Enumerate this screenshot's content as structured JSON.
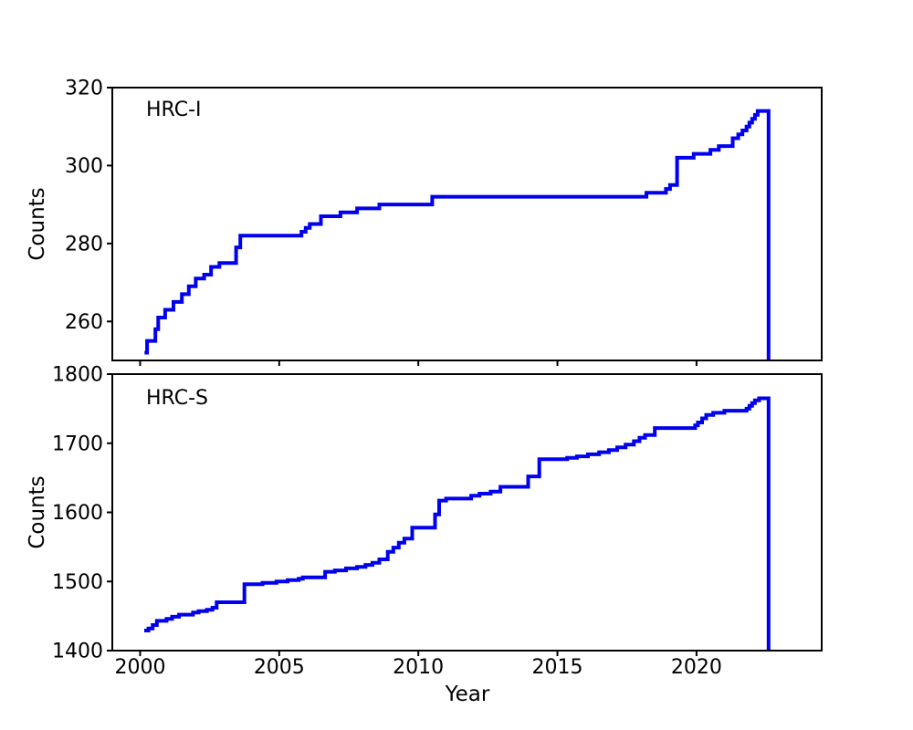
{
  "figure": {
    "background": "#ffffff",
    "axis_color": "#000000",
    "line_color": "#0000ee"
  },
  "chart_data": [
    {
      "type": "line",
      "style": "step-post",
      "label": "HRC-I",
      "ylabel": "Counts",
      "xlabel": "",
      "xlim": [
        1999.0,
        2024.5
      ],
      "ylim": [
        250,
        320
      ],
      "xticks": [
        2000,
        2005,
        2010,
        2015,
        2020
      ],
      "show_xticklabels": false,
      "yticks": [
        260,
        280,
        300,
        320
      ],
      "grid": false,
      "legend": "none",
      "points": [
        [
          2000.16,
          252
        ],
        [
          2000.25,
          255
        ],
        [
          2000.55,
          258
        ],
        [
          2000.65,
          261
        ],
        [
          2000.9,
          263
        ],
        [
          2001.2,
          265
        ],
        [
          2001.5,
          267
        ],
        [
          2001.75,
          269
        ],
        [
          2002.0,
          271
        ],
        [
          2002.3,
          272
        ],
        [
          2002.55,
          274
        ],
        [
          2002.85,
          275
        ],
        [
          2003.45,
          279
        ],
        [
          2003.6,
          282
        ],
        [
          2005.8,
          283
        ],
        [
          2005.95,
          284
        ],
        [
          2006.1,
          285
        ],
        [
          2006.5,
          287
        ],
        [
          2007.2,
          288
        ],
        [
          2007.8,
          289
        ],
        [
          2008.6,
          290
        ],
        [
          2010.5,
          292
        ],
        [
          2018.2,
          293
        ],
        [
          2018.9,
          294
        ],
        [
          2019.05,
          295
        ],
        [
          2019.3,
          302
        ],
        [
          2019.9,
          303
        ],
        [
          2020.5,
          304
        ],
        [
          2020.8,
          305
        ],
        [
          2021.3,
          307
        ],
        [
          2021.5,
          308
        ],
        [
          2021.65,
          309
        ],
        [
          2021.8,
          310
        ],
        [
          2021.9,
          311
        ],
        [
          2022.0,
          312
        ],
        [
          2022.1,
          313
        ],
        [
          2022.2,
          314
        ]
      ],
      "drop_to_ymin_at": 2022.59
    },
    {
      "type": "line",
      "style": "step-post",
      "label": "HRC-S",
      "ylabel": "Counts",
      "xlabel": "Year",
      "xlim": [
        1999.0,
        2024.5
      ],
      "ylim": [
        1400,
        1800
      ],
      "xticks": [
        2000,
        2005,
        2010,
        2015,
        2020
      ],
      "show_xticklabels": true,
      "yticks": [
        1400,
        1500,
        1600,
        1700,
        1800
      ],
      "grid": false,
      "legend": "none",
      "points": [
        [
          2000.15,
          1429
        ],
        [
          2000.3,
          1432
        ],
        [
          2000.45,
          1437
        ],
        [
          2000.6,
          1443
        ],
        [
          2000.95,
          1446
        ],
        [
          2001.15,
          1449
        ],
        [
          2001.4,
          1452
        ],
        [
          2001.9,
          1455
        ],
        [
          2002.1,
          1457
        ],
        [
          2002.4,
          1459
        ],
        [
          2002.6,
          1462
        ],
        [
          2002.75,
          1470
        ],
        [
          2003.75,
          1496
        ],
        [
          2004.4,
          1498
        ],
        [
          2004.9,
          1500
        ],
        [
          2005.3,
          1502
        ],
        [
          2005.7,
          1504
        ],
        [
          2005.85,
          1506
        ],
        [
          2006.65,
          1514
        ],
        [
          2007.0,
          1516
        ],
        [
          2007.4,
          1519
        ],
        [
          2007.8,
          1521
        ],
        [
          2008.1,
          1524
        ],
        [
          2008.35,
          1527
        ],
        [
          2008.6,
          1532
        ],
        [
          2008.9,
          1543
        ],
        [
          2009.1,
          1549
        ],
        [
          2009.3,
          1556
        ],
        [
          2009.5,
          1562
        ],
        [
          2009.78,
          1578
        ],
        [
          2010.6,
          1597
        ],
        [
          2010.75,
          1617
        ],
        [
          2011.0,
          1620
        ],
        [
          2011.9,
          1624
        ],
        [
          2012.2,
          1627
        ],
        [
          2012.6,
          1630
        ],
        [
          2012.95,
          1637
        ],
        [
          2013.95,
          1652
        ],
        [
          2014.35,
          1677
        ],
        [
          2015.35,
          1679
        ],
        [
          2015.7,
          1681
        ],
        [
          2016.1,
          1684
        ],
        [
          2016.5,
          1687
        ],
        [
          2016.85,
          1690
        ],
        [
          2017.15,
          1694
        ],
        [
          2017.45,
          1698
        ],
        [
          2017.75,
          1703
        ],
        [
          2017.95,
          1708
        ],
        [
          2018.15,
          1712
        ],
        [
          2018.5,
          1722
        ],
        [
          2019.95,
          1726
        ],
        [
          2020.05,
          1730
        ],
        [
          2020.2,
          1736
        ],
        [
          2020.35,
          1741
        ],
        [
          2020.6,
          1744
        ],
        [
          2021.0,
          1747
        ],
        [
          2021.8,
          1750
        ],
        [
          2021.9,
          1754
        ],
        [
          2022.0,
          1758
        ],
        [
          2022.1,
          1762
        ],
        [
          2022.25,
          1765
        ]
      ],
      "drop_to_ymin_at": 2022.59
    }
  ]
}
